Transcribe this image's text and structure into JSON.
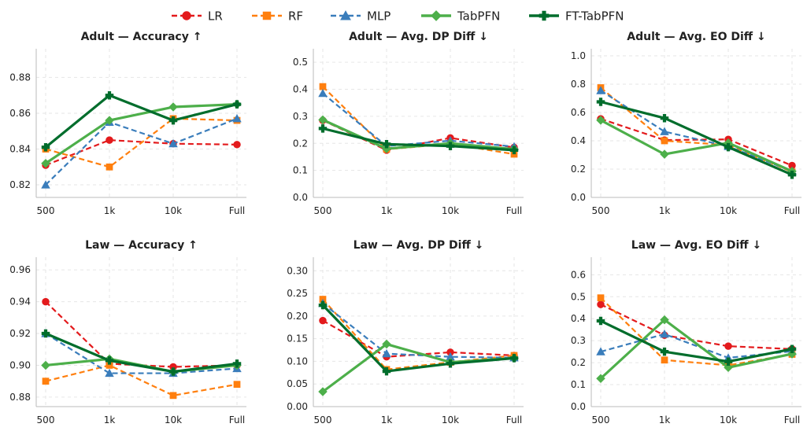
{
  "legend": [
    {
      "name": "LR",
      "color": "#e31a1c",
      "marker": "circle",
      "dash": "dashed"
    },
    {
      "name": "RF",
      "color": "#ff7f0e",
      "marker": "square",
      "dash": "dashed"
    },
    {
      "name": "MLP",
      "color": "#3a7dbb",
      "marker": "triangle",
      "dash": "dashed"
    },
    {
      "name": "TabPFN",
      "color": "#4daf4a",
      "marker": "diamond",
      "dash": "solid"
    },
    {
      "name": "FT-TabPFN",
      "color": "#006d2c",
      "marker": "plus",
      "dash": "solid"
    }
  ],
  "chart_data": [
    {
      "type": "line",
      "title": "Adult — Accuracy ↑",
      "categories": [
        "500",
        "1k",
        "10k",
        "Full"
      ],
      "ylim": [
        0.813,
        0.896
      ],
      "yticks": [
        0.82,
        0.84,
        0.86,
        0.88
      ],
      "ytick_labels": [
        "0.82",
        "0.84",
        "0.86",
        "0.88"
      ],
      "series": [
        {
          "name": "LR",
          "values": [
            0.831,
            0.845,
            0.843,
            0.8425
          ]
        },
        {
          "name": "RF",
          "values": [
            0.84,
            0.83,
            0.857,
            0.856
          ]
        },
        {
          "name": "MLP",
          "values": [
            0.82,
            0.855,
            0.843,
            0.857
          ]
        },
        {
          "name": "TabPFN",
          "values": [
            0.832,
            0.856,
            0.8635,
            0.865
          ]
        },
        {
          "name": "FT-TabPFN",
          "values": [
            0.841,
            0.87,
            0.856,
            0.865
          ]
        }
      ]
    },
    {
      "type": "line",
      "title": "Adult — Avg. DP Diff ↓",
      "categories": [
        "500",
        "1k",
        "10k",
        "Full"
      ],
      "ylim": [
        0.0,
        0.55
      ],
      "yticks": [
        0.0,
        0.1,
        0.2,
        0.3,
        0.4,
        0.5
      ],
      "ytick_labels": [
        "0.0",
        "0.1",
        "0.2",
        "0.3",
        "0.4",
        "0.5"
      ],
      "series": [
        {
          "name": "LR",
          "values": [
            0.285,
            0.175,
            0.22,
            0.185
          ]
        },
        {
          "name": "RF",
          "values": [
            0.41,
            0.178,
            0.198,
            0.16
          ]
        },
        {
          "name": "MLP",
          "values": [
            0.385,
            0.19,
            0.21,
            0.188
          ]
        },
        {
          "name": "TabPFN",
          "values": [
            0.287,
            0.18,
            0.2,
            0.178
          ]
        },
        {
          "name": "FT-TabPFN",
          "values": [
            0.255,
            0.197,
            0.19,
            0.175
          ]
        }
      ]
    },
    {
      "type": "line",
      "title": "Adult — Avg. EO Diff ↓",
      "categories": [
        "500",
        "1k",
        "10k",
        "Full"
      ],
      "ylim": [
        0.0,
        1.05
      ],
      "yticks": [
        0.0,
        0.2,
        0.4,
        0.6,
        0.8,
        1.0
      ],
      "ytick_labels": [
        "0.0",
        "0.2",
        "0.4",
        "0.6",
        "0.8",
        "1.0"
      ],
      "series": [
        {
          "name": "LR",
          "values": [
            0.555,
            0.405,
            0.41,
            0.225
          ]
        },
        {
          "name": "RF",
          "values": [
            0.775,
            0.4,
            0.37,
            0.18
          ]
        },
        {
          "name": "MLP",
          "values": [
            0.755,
            0.465,
            0.36,
            0.185
          ]
        },
        {
          "name": "TabPFN",
          "values": [
            0.545,
            0.305,
            0.385,
            0.185
          ]
        },
        {
          "name": "FT-TabPFN",
          "values": [
            0.675,
            0.56,
            0.355,
            0.16
          ]
        }
      ]
    },
    {
      "type": "line",
      "title": "Law — Accuracy ↑",
      "categories": [
        "500",
        "1k",
        "10k",
        "Full"
      ],
      "ylim": [
        0.874,
        0.968
      ],
      "yticks": [
        0.88,
        0.9,
        0.92,
        0.94,
        0.96
      ],
      "ytick_labels": [
        "0.88",
        "0.90",
        "0.92",
        "0.94",
        "0.96"
      ],
      "series": [
        {
          "name": "LR",
          "values": [
            0.94,
            0.901,
            0.899,
            0.9
          ]
        },
        {
          "name": "RF",
          "values": [
            0.89,
            0.9,
            0.881,
            0.888
          ]
        },
        {
          "name": "MLP",
          "values": [
            0.92,
            0.895,
            0.895,
            0.898
          ]
        },
        {
          "name": "TabPFN",
          "values": [
            0.9,
            0.904,
            0.896,
            0.9
          ]
        },
        {
          "name": "FT-TabPFN",
          "values": [
            0.92,
            0.903,
            0.896,
            0.901
          ]
        }
      ]
    },
    {
      "type": "line",
      "title": "Law — Avg. DP Diff ↓",
      "categories": [
        "500",
        "1k",
        "10k",
        "Full"
      ],
      "ylim": [
        0.0,
        0.33
      ],
      "yticks": [
        0.0,
        0.05,
        0.1,
        0.15,
        0.2,
        0.25,
        0.3
      ],
      "ytick_labels": [
        "0.00",
        "0.05",
        "0.10",
        "0.15",
        "0.20",
        "0.25",
        "0.30"
      ],
      "series": [
        {
          "name": "LR",
          "values": [
            0.19,
            0.11,
            0.12,
            0.113
          ]
        },
        {
          "name": "RF",
          "values": [
            0.237,
            0.082,
            0.098,
            0.113
          ]
        },
        {
          "name": "MLP",
          "values": [
            0.228,
            0.117,
            0.11,
            0.108
          ]
        },
        {
          "name": "TabPFN",
          "values": [
            0.033,
            0.138,
            0.098,
            0.107
          ]
        },
        {
          "name": "FT-TabPFN",
          "values": [
            0.224,
            0.078,
            0.095,
            0.107
          ]
        }
      ]
    },
    {
      "type": "line",
      "title": "Law — Avg. EO Diff ↓",
      "categories": [
        "500",
        "1k",
        "10k",
        "Full"
      ],
      "ylim": [
        0.0,
        0.68
      ],
      "yticks": [
        0.0,
        0.1,
        0.2,
        0.3,
        0.4,
        0.5,
        0.6
      ],
      "ytick_labels": [
        "0.0",
        "0.1",
        "0.2",
        "0.3",
        "0.4",
        "0.5",
        "0.6"
      ],
      "series": [
        {
          "name": "LR",
          "values": [
            0.465,
            0.325,
            0.275,
            0.262
          ]
        },
        {
          "name": "RF",
          "values": [
            0.495,
            0.212,
            0.188,
            0.238
          ]
        },
        {
          "name": "MLP",
          "values": [
            0.25,
            0.33,
            0.222,
            0.252
          ]
        },
        {
          "name": "TabPFN",
          "values": [
            0.128,
            0.395,
            0.178,
            0.24
          ]
        },
        {
          "name": "FT-TabPFN",
          "values": [
            0.39,
            0.25,
            0.205,
            0.262
          ]
        }
      ]
    }
  ]
}
